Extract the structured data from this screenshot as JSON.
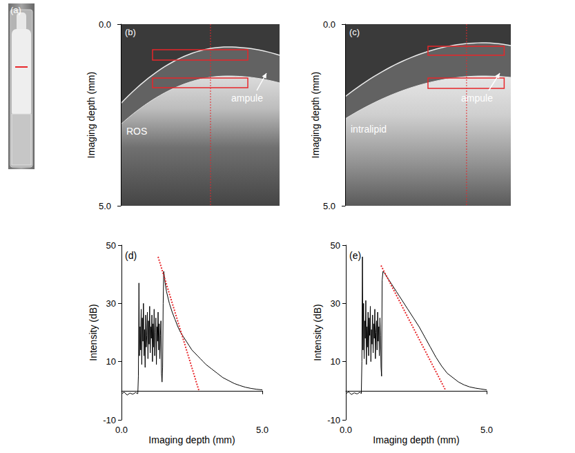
{
  "chart_data": [
    {
      "type": "photo",
      "label": "(a)"
    },
    {
      "type": "image",
      "label": "(b)",
      "ylabel": "Imaging depth (mm)",
      "ylim": [
        0,
        5
      ],
      "yticks": [
        {
          "value": 0,
          "label": "0.0"
        },
        {
          "value": 5,
          "label": "5.0"
        }
      ],
      "annotations": [
        "ROS",
        "ampule"
      ]
    },
    {
      "type": "image",
      "label": "(c)",
      "ylabel": "Imaging depth (mm)",
      "ylim": [
        0,
        5
      ],
      "yticks": [
        {
          "value": 0,
          "label": "0.0"
        },
        {
          "value": 5,
          "label": "5.0"
        }
      ],
      "annotations": [
        "intralipid",
        "ampule"
      ]
    },
    {
      "type": "line",
      "label": "(d)",
      "xlabel": "Imaging depth (mm)",
      "ylabel": "Intensity (dB)",
      "xlim": [
        0,
        5
      ],
      "ylim": [
        -10,
        50
      ],
      "xticks": [
        {
          "value": 0,
          "label": "0.0"
        },
        {
          "value": 5,
          "label": "5.0"
        }
      ],
      "yticks": [
        -10,
        10,
        30,
        50
      ],
      "series": [
        {
          "color": "#000000",
          "line_style": "solid",
          "x": [
            0,
            0.1,
            0.2,
            0.3,
            0.4,
            0.5,
            0.58,
            0.6,
            0.62,
            0.64,
            0.66,
            0.68,
            0.7,
            0.72,
            0.74,
            0.76,
            0.78,
            0.8,
            0.82,
            0.84,
            0.86,
            0.88,
            0.9,
            0.92,
            0.94,
            0.96,
            0.98,
            1.0,
            1.02,
            1.04,
            1.06,
            1.08,
            1.1,
            1.12,
            1.14,
            1.16,
            1.18,
            1.2,
            1.22,
            1.24,
            1.26,
            1.28,
            1.3,
            1.32,
            1.34,
            1.36,
            1.38,
            1.4,
            1.42,
            1.44,
            1.46,
            1.48,
            1.5,
            1.55,
            1.6,
            1.7,
            1.8,
            1.9,
            2.0,
            2.1,
            2.2,
            2.3,
            2.4,
            2.5,
            2.6,
            2.7,
            2.8,
            2.9,
            3.0,
            3.2,
            3.4,
            3.6,
            3.8,
            4.0,
            4.2,
            4.4,
            4.6,
            4.8,
            5.0
          ],
          "values": [
            -1,
            -0.5,
            -1.5,
            -0.8,
            -1.2,
            -0.6,
            -1,
            5,
            37,
            12,
            22,
            14,
            28,
            9,
            25,
            17,
            30,
            12,
            21,
            8,
            26,
            15,
            19,
            27,
            11,
            24,
            16,
            29,
            13,
            22,
            18,
            26,
            10,
            23,
            15,
            28,
            12,
            20,
            25,
            9,
            22,
            17,
            27,
            14,
            23,
            11,
            19,
            24,
            6,
            3,
            8,
            30,
            41,
            37,
            34,
            30,
            27,
            24.5,
            22,
            20,
            18.5,
            17,
            15.5,
            14,
            13,
            12,
            11,
            10,
            9,
            7.5,
            6,
            4.5,
            3.5,
            2.5,
            1.8,
            1.2,
            0.8,
            0.5,
            0.3
          ]
        },
        {
          "color": "#e8262a",
          "line_style": "dotted",
          "x": [
            1.3,
            2.75
          ],
          "values": [
            46,
            0
          ]
        }
      ]
    },
    {
      "type": "line",
      "label": "(e)",
      "xlabel": "Imaging depth (mm)",
      "ylabel": "Intensity (dB)",
      "xlim": [
        0,
        5
      ],
      "ylim": [
        -10,
        50
      ],
      "xticks": [
        {
          "value": 0,
          "label": "0.0"
        },
        {
          "value": 5,
          "label": "5.0"
        }
      ],
      "yticks": [
        -10,
        10,
        30,
        50
      ],
      "series": [
        {
          "color": "#000000",
          "line_style": "solid",
          "x": [
            0,
            0.1,
            0.2,
            0.3,
            0.4,
            0.5,
            0.55,
            0.57,
            0.59,
            0.61,
            0.63,
            0.65,
            0.67,
            0.69,
            0.71,
            0.73,
            0.75,
            0.77,
            0.79,
            0.81,
            0.83,
            0.85,
            0.87,
            0.89,
            0.91,
            0.93,
            0.95,
            0.97,
            0.99,
            1.01,
            1.03,
            1.05,
            1.07,
            1.09,
            1.11,
            1.13,
            1.15,
            1.17,
            1.19,
            1.21,
            1.23,
            1.25,
            1.27,
            1.29,
            1.32,
            1.4,
            1.5,
            1.6,
            1.7,
            1.8,
            1.9,
            2.0,
            2.2,
            2.4,
            2.6,
            2.8,
            3.0,
            3.2,
            3.4,
            3.6,
            3.8,
            4.0,
            4.2,
            4.4,
            4.6,
            4.8,
            5.0
          ],
          "values": [
            -1,
            -0.4,
            -1.3,
            -0.7,
            -1.1,
            -0.5,
            -1,
            10,
            46,
            14,
            30,
            11,
            24,
            18,
            31,
            9,
            22,
            15,
            27,
            12,
            25,
            19,
            29,
            10,
            21,
            16,
            26,
            13,
            23,
            18,
            28,
            11,
            20,
            24,
            14,
            27,
            17,
            22,
            12,
            25,
            19,
            8,
            5,
            38,
            41,
            40,
            38.5,
            37,
            35.5,
            34,
            32.5,
            31,
            28,
            25,
            22,
            18.5,
            15,
            11.5,
            8.5,
            6,
            4.5,
            3,
            2,
            1.3,
            0.9,
            0.6,
            0.3
          ]
        },
        {
          "color": "#e8262a",
          "line_style": "dotted",
          "x": [
            1.25,
            3.55
          ],
          "values": [
            43,
            0
          ]
        }
      ]
    }
  ]
}
